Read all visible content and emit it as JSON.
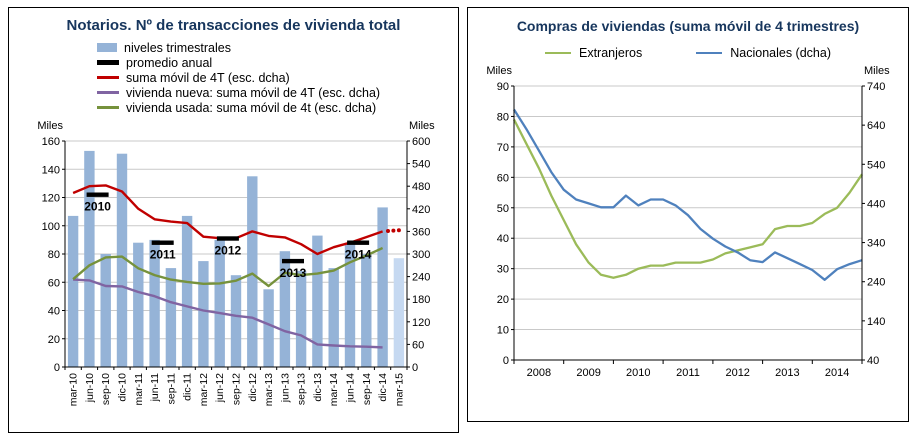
{
  "chart_data": [
    {
      "type": "bar+line",
      "title": "Notarios. Nº de transacciones de vivienda total",
      "title_color": "#17365d",
      "legend": [
        {
          "label": "niveles trimestrales",
          "swatch": "bar",
          "color": "#95b3d7"
        },
        {
          "label": "promedio anual",
          "swatch": "thick-line",
          "color": "#000000"
        },
        {
          "label": "suma móvil de 4T (esc. dcha)",
          "swatch": "line",
          "color": "#c00000"
        },
        {
          "label": "vivienda nueva: suma móvil de 4T (esc. dcha)",
          "swatch": "line",
          "color": "#8064a2"
        },
        {
          "label": "vivienda usada: suma móvil de 4t (esc. dcha)",
          "swatch": "line",
          "color": "#76923c"
        }
      ],
      "left_axis": {
        "label": "Miles",
        "min": 0,
        "max": 160,
        "step": 20
      },
      "right_axis": {
        "label": "Miles",
        "min": 0,
        "max": 600,
        "step": 60
      },
      "categories": [
        "mar-10",
        "jun-10",
        "sep-10",
        "dic-10",
        "mar-11",
        "jun-11",
        "sep-11",
        "dic-11",
        "mar-12",
        "jun-12",
        "sep-12",
        "dic-12",
        "mar-13",
        "jun-13",
        "sep-13",
        "dic-13",
        "mar-14",
        "jun-14",
        "sep-14",
        "dic-14",
        "mar-15"
      ],
      "bars": {
        "name": "niveles trimestrales",
        "axis": "left",
        "color": "#95b3d7",
        "last_bar_color": "#c6d9f1",
        "values": [
          107,
          153,
          80,
          151,
          88,
          90,
          70,
          107,
          75,
          90,
          65,
          135,
          55,
          82,
          68,
          93,
          70,
          88,
          80,
          113,
          77
        ]
      },
      "annual_avg": {
        "name": "promedio anual",
        "axis": "left",
        "color": "#000000",
        "points": [
          {
            "year": "2010",
            "center_index": 1.5,
            "value": 122
          },
          {
            "year": "2011",
            "center_index": 5.5,
            "value": 88
          },
          {
            "year": "2012",
            "center_index": 9.5,
            "value": 91
          },
          {
            "year": "2013",
            "center_index": 13.5,
            "value": 75
          },
          {
            "year": "2014",
            "center_index": 17.5,
            "value": 88
          }
        ]
      },
      "series": [
        {
          "name": "suma móvil de 4T (esc. dcha)",
          "axis": "right",
          "color": "#c00000",
          "values": [
            462,
            480,
            482,
            466,
            420,
            392,
            386,
            382,
            346,
            342,
            342,
            360,
            348,
            344,
            326,
            300,
            318,
            330,
            345,
            360
          ],
          "projection_dots": [
            361,
            362,
            363
          ]
        },
        {
          "name": "vivienda nueva: suma móvil de 4T (esc. dcha)",
          "axis": "right",
          "color": "#8064a2",
          "values": [
            232,
            230,
            215,
            214,
            199,
            188,
            172,
            161,
            150,
            143,
            136,
            131,
            113,
            95,
            84,
            60,
            57,
            55,
            54,
            52
          ]
        },
        {
          "name": "vivienda usada: suma móvil de 4t (esc. dcha)",
          "axis": "right",
          "color": "#76923c",
          "values": [
            233,
            270,
            291,
            293,
            262,
            244,
            232,
            226,
            221,
            222,
            229,
            248,
            215,
            250,
            244,
            248,
            256,
            278,
            296,
            316
          ]
        }
      ]
    },
    {
      "type": "line",
      "title": "Compras de viviendas (suma móvil de 4 trimestres)",
      "title_color": "#17365d",
      "legend": [
        {
          "label": "Extranjeros",
          "swatch": "line",
          "color": "#9bbb59"
        },
        {
          "label": "Nacionales (dcha)",
          "swatch": "line",
          "color": "#4f81bd"
        }
      ],
      "left_axis": {
        "label": "Miles",
        "min": 0,
        "max": 90,
        "step": 10
      },
      "right_axis": {
        "label": "Miles",
        "min": 40,
        "max": 740,
        "step": 100
      },
      "x_tick_years": [
        "2008",
        "2009",
        "2010",
        "2011",
        "2012",
        "2013",
        "2014"
      ],
      "points_per_year": 4,
      "series": [
        {
          "name": "Extranjeros",
          "axis": "left",
          "color": "#9bbb59",
          "values": [
            79,
            71,
            63,
            54,
            46,
            38,
            32,
            28,
            27,
            28,
            30,
            31,
            31,
            32,
            32,
            32,
            33,
            35,
            36,
            37,
            38,
            43,
            44,
            44,
            45,
            48,
            50,
            55,
            61
          ]
        },
        {
          "name": "Nacionales (dcha)",
          "axis": "right",
          "color": "#4f81bd",
          "values": [
            680,
            630,
            575,
            520,
            475,
            450,
            440,
            430,
            430,
            460,
            435,
            450,
            450,
            435,
            410,
            375,
            350,
            330,
            315,
            295,
            290,
            315,
            300,
            285,
            270,
            245,
            272,
            285,
            295
          ]
        }
      ]
    }
  ]
}
